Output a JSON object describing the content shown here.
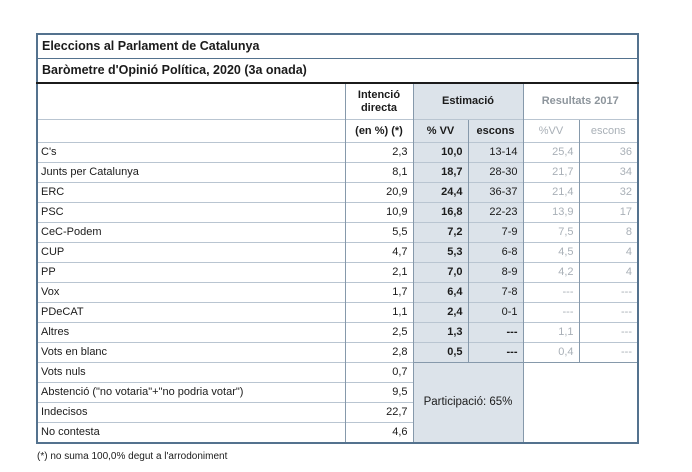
{
  "title": "Eleccions al Parlament de Catalunya",
  "subtitle": "Baròmetre d'Opinió Política, 2020 (3a onada)",
  "header": {
    "intencio": "Intenció directa",
    "intencio_sub": "(en %) (*)",
    "estimacio": "Estimació",
    "est_vv": "% VV",
    "est_escons": "escons",
    "resultats2017": "Resultats 2017",
    "r17_vv": "%VV",
    "r17_escons": "escons"
  },
  "rows": [
    {
      "party": "C's",
      "intencio": "2,3",
      "est_vv": "10,0",
      "est_escons": "13-14",
      "r17_vv": "25,4",
      "r17_escons": "36"
    },
    {
      "party": "Junts per Catalunya",
      "intencio": "8,1",
      "est_vv": "18,7",
      "est_escons": "28-30",
      "r17_vv": "21,7",
      "r17_escons": "34"
    },
    {
      "party": "ERC",
      "intencio": "20,9",
      "est_vv": "24,4",
      "est_escons": "36-37",
      "r17_vv": "21,4",
      "r17_escons": "32"
    },
    {
      "party": "PSC",
      "intencio": "10,9",
      "est_vv": "16,8",
      "est_escons": "22-23",
      "r17_vv": "13,9",
      "r17_escons": "17"
    },
    {
      "party": "CeC-Podem",
      "intencio": "5,5",
      "est_vv": "7,2",
      "est_escons": "7-9",
      "r17_vv": "7,5",
      "r17_escons": "8"
    },
    {
      "party": "CUP",
      "intencio": "4,7",
      "est_vv": "5,3",
      "est_escons": "6-8",
      "r17_vv": "4,5",
      "r17_escons": "4"
    },
    {
      "party": "PP",
      "intencio": "2,1",
      "est_vv": "7,0",
      "est_escons": "8-9",
      "r17_vv": "4,2",
      "r17_escons": "4"
    },
    {
      "party": "Vox",
      "intencio": "1,7",
      "est_vv": "6,4",
      "est_escons": "7-8",
      "r17_vv": "---",
      "r17_escons": "---"
    },
    {
      "party": "PDeCAT",
      "intencio": "1,1",
      "est_vv": "2,4",
      "est_escons": "0-1",
      "r17_vv": "---",
      "r17_escons": "---"
    },
    {
      "party": "Altres",
      "intencio": "2,5",
      "est_vv": "1,3",
      "est_escons": "---",
      "r17_vv": "1,1",
      "r17_escons": "---"
    },
    {
      "party": "Vots en blanc",
      "intencio": "2,8",
      "est_vv": "0,5",
      "est_escons": "---",
      "r17_vv": "0,4",
      "r17_escons": "---"
    }
  ],
  "bottom_rows": [
    {
      "party": "Vots nuls",
      "intencio": "0,7"
    },
    {
      "party": "Abstenció (\"no votaria\"+\"no podria votar\")",
      "intencio": "9,5"
    },
    {
      "party": "Indecisos",
      "intencio": "22,7"
    },
    {
      "party": "No contesta",
      "intencio": "4,6"
    }
  ],
  "participation": "Participació: 65%",
  "footnote": "(*) no suma 100,0% degut a l'arrodoniment",
  "colors": {
    "border_dark": "#54728e",
    "border_light": "#b9c5d1",
    "estimacio_fill": "#dce3ea",
    "muted_text": "#a9b0b7",
    "title_rule": "#1b1b1b"
  }
}
